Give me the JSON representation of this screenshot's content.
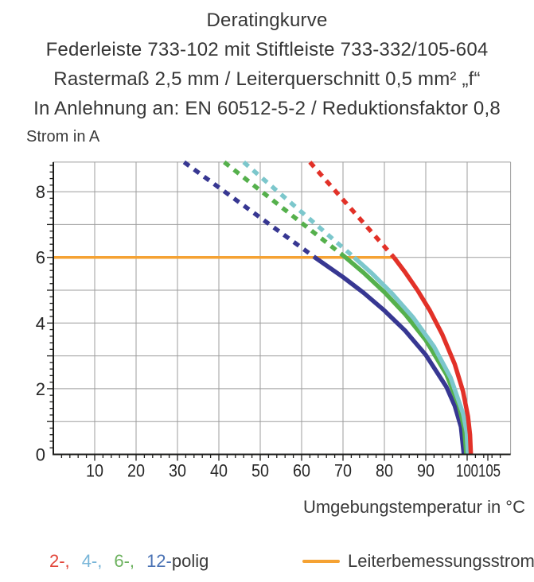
{
  "title": {
    "line1": "Deratingkurve",
    "line2": "Federleiste 733-102 mit Stiftleiste 733-332/105-604",
    "line3": "Rastermaß 2,5 mm / Leiterquerschnitt 0,5 mm² „f“",
    "line4": "In Anlehnung an: EN 60512-5-2 / Reduktionsfaktor 0,8"
  },
  "chart_data": {
    "type": "line",
    "title": "Deratingkurve",
    "xlabel": "Umgebungstemperatur in °C",
    "ylabel": "Strom in A",
    "xlim": [
      0,
      110.5
    ],
    "ylim": [
      0,
      8.9
    ],
    "x_tick_labels": [
      10,
      20,
      30,
      40,
      50,
      60,
      70,
      80,
      90,
      100,
      105
    ],
    "x_minor_tick_step": 2,
    "y_tick_labels": [
      0,
      2,
      4,
      6,
      8
    ],
    "y_major_tick_step": 1,
    "y_minor_tick_step": 0.2,
    "grid": true,
    "grid_color": "#9d9d9d",
    "axis_color": "#1d1d1b",
    "tick_label_color": "#262626",
    "rated_current_A": 6,
    "reference_line": {
      "label": "Leiterbemessungsstrom",
      "color": "#f5a233",
      "y_A": 6,
      "x_start_T": 0,
      "x_end_T": 82.3
    },
    "series": [
      {
        "name": "2-polig",
        "color": "#e23128",
        "dashed_points": [
          [
            62.0,
            8.9
          ],
          [
            82.3,
            6
          ]
        ],
        "knee_T": 82.3,
        "T_max": 100.9,
        "solid_points": [
          [
            82.3,
            6
          ],
          [
            85,
            5.55
          ],
          [
            88,
            5.0
          ],
          [
            91,
            4.38
          ],
          [
            94,
            3.65
          ],
          [
            97,
            2.75
          ],
          [
            99,
            1.92
          ],
          [
            100.2,
            1.16
          ],
          [
            100.7,
            0.6
          ],
          [
            100.9,
            0
          ]
        ]
      },
      {
        "name": "4-polig",
        "color": "#7cc7cc",
        "dashed_points": [
          [
            46.0,
            8.9
          ],
          [
            72.7,
            6
          ]
        ],
        "knee_T": 72.7,
        "T_max": 100.2,
        "solid_points": [
          [
            72.7,
            6
          ],
          [
            77,
            5.51
          ],
          [
            82,
            4.88
          ],
          [
            87,
            4.16
          ],
          [
            92,
            3.28
          ],
          [
            96,
            2.34
          ],
          [
            99,
            1.25
          ],
          [
            99.9,
            0.67
          ],
          [
            100.2,
            0
          ]
        ]
      },
      {
        "name": "6-polig",
        "color": "#55b04c",
        "dashed_points": [
          [
            41.3,
            8.9
          ],
          [
            70.6,
            6
          ]
        ],
        "knee_T": 70.6,
        "T_max": 99.8,
        "solid_points": [
          [
            70.6,
            6
          ],
          [
            75,
            5.53
          ],
          [
            80,
            4.94
          ],
          [
            85,
            4.27
          ],
          [
            90,
            3.48
          ],
          [
            95,
            2.43
          ],
          [
            98,
            1.49
          ],
          [
            99.3,
            0.79
          ],
          [
            99.8,
            0
          ]
        ]
      },
      {
        "name": "12-polig",
        "color": "#373792",
        "dashed_points": [
          [
            31.6,
            8.9
          ],
          [
            63.2,
            6
          ]
        ],
        "knee_T": 63.2,
        "T_max": 99.2,
        "solid_points": [
          [
            63.2,
            6
          ],
          [
            70,
            5.4
          ],
          [
            75,
            4.92
          ],
          [
            80,
            4.38
          ],
          [
            85,
            3.77
          ],
          [
            90,
            3.03
          ],
          [
            95,
            2.05
          ],
          [
            97,
            1.48
          ],
          [
            98.5,
            0.84
          ],
          [
            99.2,
            0
          ]
        ]
      }
    ]
  },
  "legend": {
    "pole_items": [
      {
        "text": "2-,",
        "color": "#e2463a"
      },
      {
        "text": "4-,",
        "color": "#77b5d8"
      },
      {
        "text": "6-,",
        "color": "#6db25f"
      },
      {
        "text": "12-",
        "color": "#4a72b4"
      }
    ],
    "pole_suffix": "polig",
    "reference": {
      "label": "Leiterbemessungsstrom",
      "color": "#f5a233"
    }
  }
}
